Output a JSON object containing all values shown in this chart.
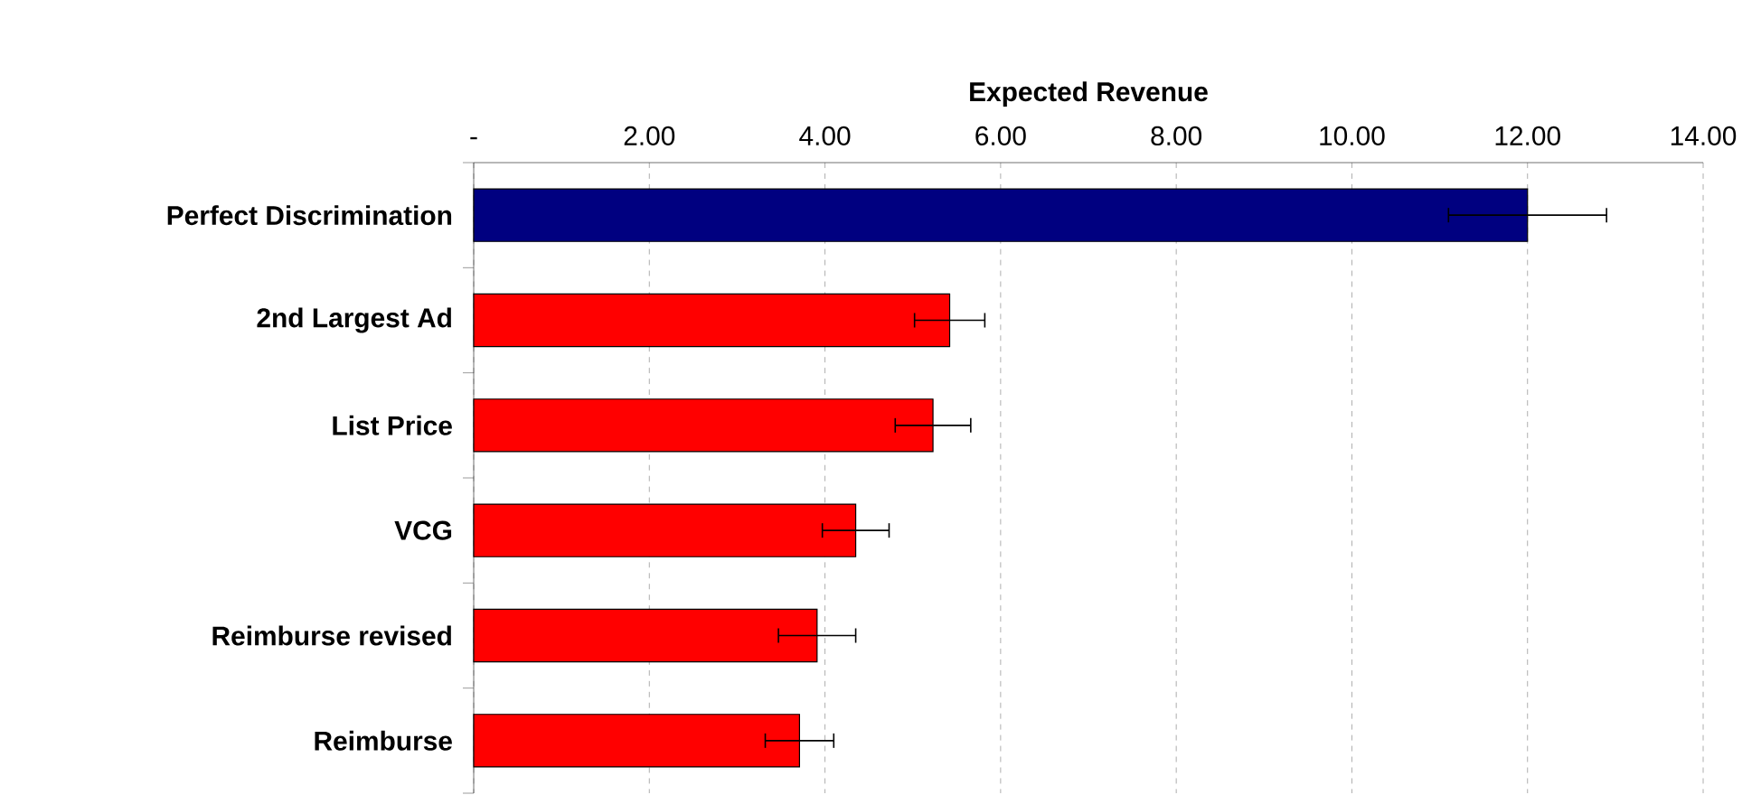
{
  "chart_data": {
    "type": "bar",
    "orientation": "horizontal",
    "xlabel": "Expected Revenue",
    "categories": [
      "Perfect Discrimination",
      "2nd Largest Ad",
      "List Price",
      "VCG",
      "Reimburse revised",
      "Reimburse"
    ],
    "values": [
      12.0,
      5.42,
      5.23,
      4.35,
      3.91,
      3.71
    ],
    "errors": [
      0.9,
      0.4,
      0.43,
      0.38,
      0.44,
      0.39
    ],
    "colors": [
      "#000080",
      "#ff0000",
      "#ff0000",
      "#ff0000",
      "#ff0000",
      "#ff0000"
    ],
    "xlim": [
      0,
      14
    ],
    "xticks": [
      {
        "value": 0,
        "label": "-"
      },
      {
        "value": 2,
        "label": "2.00"
      },
      {
        "value": 4,
        "label": "4.00"
      },
      {
        "value": 6,
        "label": "6.00"
      },
      {
        "value": 8,
        "label": "8.00"
      },
      {
        "value": 10,
        "label": "10.00"
      },
      {
        "value": 12,
        "label": "12.00"
      },
      {
        "value": 14,
        "label": "14.00"
      }
    ],
    "grid": "x"
  }
}
